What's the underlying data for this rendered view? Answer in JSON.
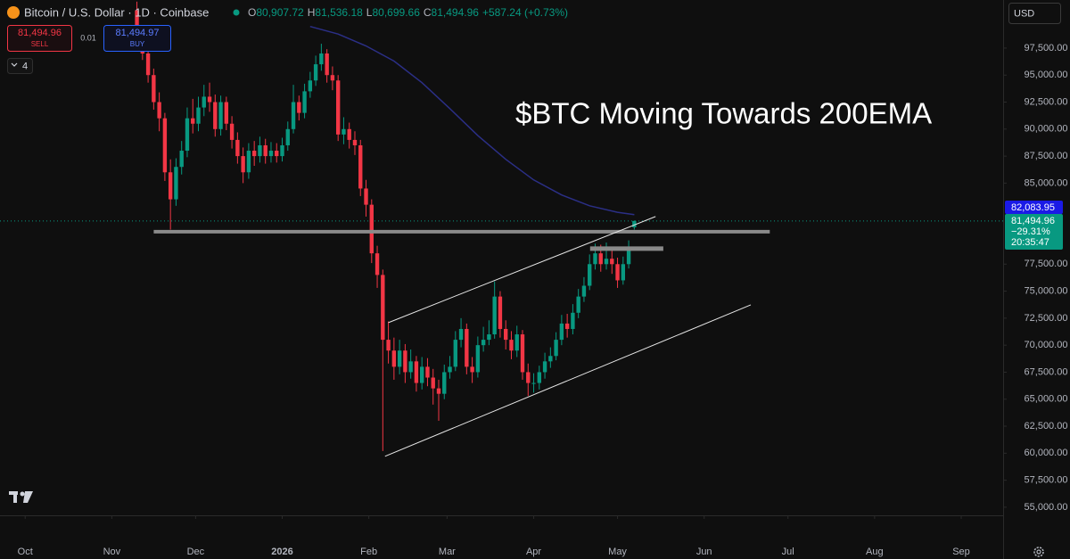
{
  "chart_data": {
    "type": "candlestick",
    "title": "$BTC Moving Towards 200EMA",
    "symbol": "Bitcoin / U.S. Dollar · 1D · Coinbase",
    "ohlc_legend": [
      {
        "label": "O",
        "value": "80,907.72"
      },
      {
        "label": "H",
        "value": "81,536.18"
      },
      {
        "label": "L",
        "value": "80,699.66"
      },
      {
        "label": "C",
        "value": "81,494.96"
      }
    ],
    "change": "+587.24 (+0.73%)",
    "trade": {
      "sell_price": "81,494.96",
      "sell_label": "SELL",
      "spread": "0.01",
      "buy_price": "81,494.97",
      "buy_label": "BUY"
    },
    "indicator_count": "4",
    "currency": "USD",
    "price_labels": {
      "ema": "82,083.95",
      "last": "81,494.96",
      "change_pct": "−29.31%",
      "countdown": "20:35:47"
    },
    "up_color": "#089981",
    "down_color": "#f23645",
    "xlim": [
      -9,
      350
    ],
    "ylim": [
      54250,
      101950
    ],
    "xticks": [
      {
        "value": 0,
        "label": "Oct"
      },
      {
        "value": 31,
        "label": "Nov"
      },
      {
        "value": 61,
        "label": "Dec"
      },
      {
        "value": 92,
        "label": "2026"
      },
      {
        "value": 123,
        "label": "Feb"
      },
      {
        "value": 151,
        "label": "Mar"
      },
      {
        "value": 182,
        "label": "Apr"
      },
      {
        "value": 212,
        "label": "May"
      },
      {
        "value": 243,
        "label": "Jun"
      },
      {
        "value": 273,
        "label": "Jul"
      },
      {
        "value": 304,
        "label": "Aug"
      },
      {
        "value": 335,
        "label": "Sep"
      }
    ],
    "yticks": [
      {
        "value": 55000,
        "label": "55,000.00"
      },
      {
        "value": 57500,
        "label": "57,500.00"
      },
      {
        "value": 60000,
        "label": "60,000.00"
      },
      {
        "value": 62500,
        "label": "62,500.00"
      },
      {
        "value": 65000,
        "label": "65,000.00"
      },
      {
        "value": 67500,
        "label": "67,500.00"
      },
      {
        "value": 70000,
        "label": "70,000.00"
      },
      {
        "value": 72500,
        "label": "72,500.00"
      },
      {
        "value": 75000,
        "label": "75,000.00"
      },
      {
        "value": 77500,
        "label": "77,500.00"
      },
      {
        "value": 85000,
        "label": "85,000.00"
      },
      {
        "value": 87500,
        "label": "87,500.00"
      },
      {
        "value": 90000,
        "label": "90,000.00"
      },
      {
        "value": 92500,
        "label": "92,500.00"
      },
      {
        "value": 95000,
        "label": "95,000.00"
      },
      {
        "value": 97500,
        "label": "97,500.00"
      }
    ],
    "candles": {
      "x": [
        40,
        42,
        44,
        46,
        48,
        50,
        52,
        54,
        56,
        58,
        60,
        62,
        64,
        66,
        68,
        70,
        72,
        74,
        76,
        78,
        80,
        82,
        84,
        86,
        88,
        90,
        92,
        94,
        96,
        98,
        100,
        102,
        104,
        106,
        108,
        110,
        112,
        114,
        116,
        118,
        120,
        122,
        124,
        126,
        128,
        130,
        132,
        134,
        136,
        138,
        140,
        142,
        144,
        146,
        148,
        150,
        152,
        154,
        156,
        158,
        160,
        162,
        164,
        166,
        168,
        170,
        172,
        174,
        176,
        178,
        180,
        182,
        184,
        186,
        188,
        190,
        192,
        194,
        196,
        198,
        200,
        202,
        204,
        206,
        208,
        210,
        212,
        214,
        216,
        218
      ],
      "open": [
        101000,
        99000,
        97000,
        95000,
        92500,
        91000,
        86000,
        83500,
        86500,
        88000,
        91000,
        90500,
        92000,
        93000,
        92500,
        90000,
        92500,
        90500,
        89000,
        87500,
        86000,
        88000,
        87500,
        88500,
        87500,
        88000,
        87500,
        88500,
        90000,
        92500,
        91500,
        93500,
        94500,
        96000,
        97000,
        95000,
        94500,
        89500,
        90000,
        89000,
        88500,
        84500,
        83000,
        78500,
        76500,
        70500,
        69500,
        68000,
        69500,
        67500,
        68500,
        66500,
        68000,
        67000,
        66000,
        65500,
        67500,
        68000,
        70500,
        71500,
        68000,
        67500,
        70000,
        70500,
        71000,
        74500,
        71500,
        70500,
        69500,
        71000,
        67500,
        66500,
        66500,
        67500,
        68500,
        69000,
        70500,
        72000,
        71500,
        73000,
        74500,
        75500,
        77500,
        78500,
        77500,
        78000,
        77500,
        76000,
        77500,
        80907.72
      ],
      "high": [
        101800,
        99600,
        97500,
        95600,
        93400,
        91500,
        87200,
        87300,
        88900,
        92000,
        92800,
        93000,
        94100,
        94300,
        93200,
        93100,
        93000,
        91200,
        89700,
        88300,
        88700,
        88900,
        89300,
        89100,
        88800,
        88700,
        89200,
        90700,
        94100,
        93100,
        94200,
        95300,
        96800,
        97900,
        97400,
        95800,
        95000,
        91100,
        90600,
        89800,
        89000,
        85300,
        83500,
        79200,
        77000,
        72200,
        70700,
        70500,
        70100,
        69600,
        69000,
        68900,
        68800,
        67800,
        66800,
        68200,
        69000,
        71300,
        72500,
        72000,
        68900,
        70800,
        71700,
        72300,
        75900,
        75000,
        72300,
        71300,
        71800,
        71400,
        68300,
        67400,
        68100,
        69300,
        69800,
        71200,
        72800,
        72900,
        73800,
        75200,
        76300,
        78400,
        79400,
        79300,
        79500,
        78800,
        78100,
        78200,
        79700,
        81536.18
      ],
      "low": [
        98500,
        96400,
        94300,
        91800,
        89800,
        85200,
        80700,
        82900,
        85800,
        87400,
        89600,
        89800,
        91200,
        91600,
        89300,
        89400,
        89900,
        88200,
        86800,
        85000,
        85400,
        86600,
        86900,
        86800,
        86900,
        86900,
        87000,
        88000,
        89600,
        90800,
        91000,
        92900,
        94000,
        95400,
        94300,
        93600,
        88900,
        88600,
        88200,
        87600,
        83800,
        81900,
        77600,
        75300,
        60200,
        68300,
        66800,
        67300,
        66500,
        66900,
        65700,
        65900,
        66200,
        64500,
        63000,
        65000,
        66900,
        67600,
        69800,
        67300,
        66500,
        67000,
        69400,
        70000,
        70600,
        70700,
        69600,
        68700,
        68900,
        66800,
        65300,
        65600,
        65900,
        66900,
        67900,
        68600,
        70000,
        70700,
        71000,
        72500,
        74000,
        75100,
        77000,
        76800,
        77000,
        76600,
        75300,
        75600,
        77100,
        80699.66
      ],
      "close": [
        99000,
        97000,
        95000,
        92500,
        91000,
        86000,
        83500,
        86500,
        88000,
        91000,
        90500,
        92000,
        93000,
        92500,
        90000,
        92500,
        90500,
        89000,
        87500,
        86000,
        88000,
        87500,
        88500,
        87500,
        88000,
        87500,
        88500,
        90000,
        92500,
        91500,
        93500,
        94500,
        96000,
        97000,
        95000,
        94500,
        89500,
        90000,
        89000,
        88500,
        84500,
        83000,
        78500,
        76500,
        70500,
        69500,
        68000,
        69500,
        67500,
        68500,
        66500,
        68000,
        67000,
        66000,
        65500,
        67500,
        68000,
        70500,
        71500,
        68000,
        67500,
        70000,
        70500,
        71000,
        74500,
        71500,
        70500,
        69500,
        71000,
        67500,
        66500,
        66500,
        67500,
        68500,
        69000,
        70500,
        72000,
        71500,
        73000,
        74500,
        75500,
        77500,
        78500,
        77500,
        78000,
        77500,
        76000,
        77500,
        79000,
        81494.96
      ]
    },
    "lines": [
      {
        "color": "#2b2f86",
        "width": 1.5,
        "x": [
          102,
          112,
          122,
          132,
          142,
          152,
          162,
          172,
          182,
          192,
          202,
          212,
          218
        ],
        "y": [
          99500,
          98800,
          97700,
          96300,
          94300,
          91900,
          89400,
          87200,
          85300,
          83900,
          82900,
          82300,
          82084
        ]
      },
      {
        "color": "#8a8a8a",
        "width": 4,
        "x": [
          46,
          266.5
        ],
        "y": [
          80503,
          80503
        ]
      },
      {
        "color": "#8a8a8a",
        "width": 5,
        "x": [
          202.2,
          228.4
        ],
        "y": [
          78936,
          78936
        ]
      },
      {
        "color": "#e6e6e6",
        "width": 1,
        "x": [
          130,
          225.6
        ],
        "y": [
          72087,
          81906
        ]
      },
      {
        "color": "#e6e6e6",
        "width": 1,
        "x": [
          128.8,
          259.7
        ],
        "y": [
          59711,
          73738
        ]
      }
    ]
  }
}
